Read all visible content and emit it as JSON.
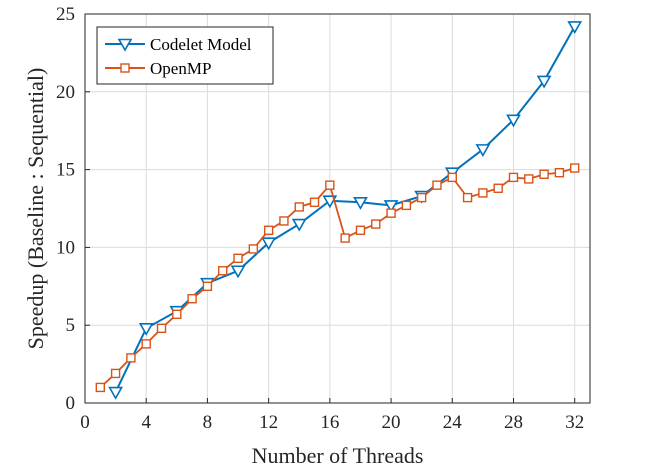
{
  "colors": {
    "codelet": "#0072BD",
    "openmp": "#D95319"
  },
  "chart_data": {
    "type": "line",
    "title": "",
    "xlabel": "Number of Threads",
    "ylabel": "Speedup (Baseline : Sequential)",
    "xlim": [
      0,
      33
    ],
    "ylim": [
      0,
      25
    ],
    "xticks": [
      0,
      4,
      8,
      12,
      16,
      20,
      24,
      28,
      32
    ],
    "yticks": [
      0,
      5,
      10,
      15,
      20,
      25
    ],
    "grid": true,
    "legend_position": "top-left",
    "series": [
      {
        "name": "Codelet Model",
        "marker": "triangle-down",
        "x": [
          2,
          4,
          6,
          8,
          10,
          12,
          14,
          16,
          18,
          20,
          22,
          24,
          26,
          28,
          30,
          32
        ],
        "y": [
          0.7,
          4.8,
          5.9,
          7.7,
          8.5,
          10.3,
          11.5,
          13.0,
          12.9,
          12.7,
          13.3,
          14.8,
          16.3,
          18.2,
          20.7,
          24.2
        ]
      },
      {
        "name": "OpenMP",
        "marker": "square",
        "x": [
          1,
          2,
          3,
          4,
          5,
          6,
          7,
          8,
          9,
          10,
          11,
          12,
          13,
          14,
          15,
          16,
          17,
          18,
          19,
          20,
          21,
          22,
          23,
          24,
          25,
          26,
          27,
          28,
          29,
          30,
          31,
          32
        ],
        "y": [
          1.0,
          1.9,
          2.9,
          3.8,
          4.8,
          5.7,
          6.7,
          7.5,
          8.5,
          9.3,
          9.9,
          11.1,
          11.7,
          12.6,
          12.9,
          14.0,
          10.6,
          11.1,
          11.5,
          12.2,
          12.7,
          13.2,
          14.0,
          14.5,
          13.2,
          13.5,
          13.8,
          14.5,
          14.4,
          14.7,
          14.8,
          15.1
        ]
      }
    ]
  }
}
